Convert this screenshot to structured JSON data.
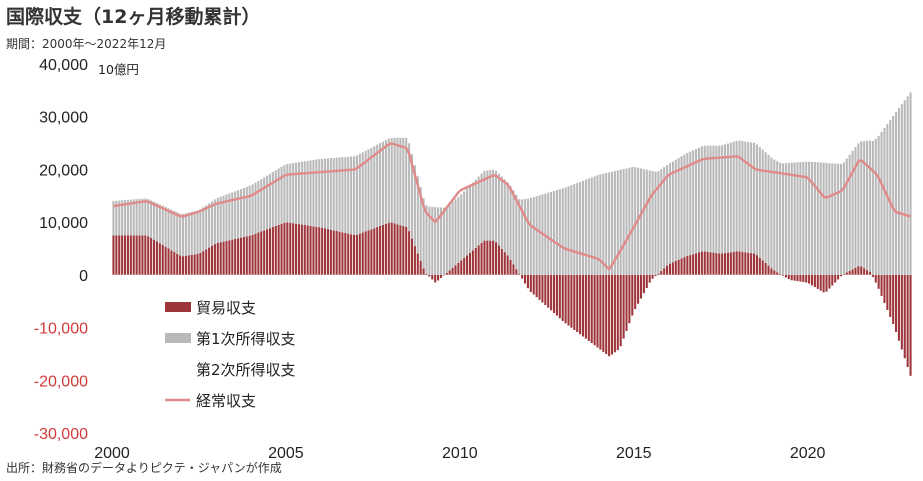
{
  "header": {
    "title": "国際収支（12ヶ月移動累計）",
    "period": "期間：2000年～2022年12月",
    "source": "出所：財務省のデータよりピクテ・ジャパンが作成"
  },
  "colors": {
    "trade": "#9e353b",
    "primary_income": "#b9b9b9",
    "secondary_income": "#ffffff",
    "current_account": "#e08a8a",
    "negative_tick": "#d23a3a"
  },
  "chart_data": {
    "type": "bar",
    "stacked": true,
    "unit_label": "10億円",
    "x_start": 2000,
    "x_end": 2023,
    "x_ticks": [
      "2000",
      "2005",
      "2010",
      "2015",
      "2020"
    ],
    "y_ticks": [
      "40,000",
      "30,000",
      "20,000",
      "10,000",
      "0",
      "-10,000",
      "-20,000",
      "-30,000"
    ],
    "ylim": [
      -30000,
      40000
    ],
    "grid": false,
    "legend_position": "lower-left",
    "series": [
      {
        "name": "貿易収支",
        "type": "bar",
        "keyframes": [
          [
            2000.0,
            7500
          ],
          [
            2001.0,
            7500
          ],
          [
            2001.5,
            5500
          ],
          [
            2002.0,
            3500
          ],
          [
            2002.5,
            4000
          ],
          [
            2003.0,
            6000
          ],
          [
            2004.0,
            7500
          ],
          [
            2005.0,
            10000
          ],
          [
            2006.0,
            9000
          ],
          [
            2007.0,
            7500
          ],
          [
            2008.0,
            10000
          ],
          [
            2008.5,
            9000
          ],
          [
            2009.0,
            500
          ],
          [
            2009.3,
            -1500
          ],
          [
            2010.0,
            2500
          ],
          [
            2010.7,
            6500
          ],
          [
            2011.0,
            6500
          ],
          [
            2011.4,
            3500
          ],
          [
            2012.0,
            -3000
          ],
          [
            2013.0,
            -9000
          ],
          [
            2014.0,
            -14000
          ],
          [
            2014.3,
            -15500
          ],
          [
            2014.6,
            -14000
          ],
          [
            2015.0,
            -7000
          ],
          [
            2015.5,
            -1000
          ],
          [
            2016.0,
            2000
          ],
          [
            2016.5,
            3500
          ],
          [
            2017.0,
            4500
          ],
          [
            2017.5,
            4000
          ],
          [
            2018.0,
            4500
          ],
          [
            2018.5,
            4000
          ],
          [
            2019.0,
            1000
          ],
          [
            2019.5,
            -1000
          ],
          [
            2020.0,
            -1500
          ],
          [
            2020.5,
            -3500
          ],
          [
            2021.0,
            0
          ],
          [
            2021.5,
            1800
          ],
          [
            2021.8,
            500
          ],
          [
            2022.0,
            -2000
          ],
          [
            2022.5,
            -10000
          ],
          [
            2023.0,
            -20000
          ]
        ]
      },
      {
        "name": "第1次所得収支",
        "type": "bar",
        "keyframes": [
          [
            2000.0,
            6500
          ],
          [
            2001.0,
            7000
          ],
          [
            2002.0,
            8000
          ],
          [
            2003.0,
            8500
          ],
          [
            2004.0,
            9500
          ],
          [
            2005.0,
            11000
          ],
          [
            2006.0,
            13000
          ],
          [
            2007.0,
            15000
          ],
          [
            2008.0,
            16000
          ],
          [
            2008.5,
            17000
          ],
          [
            2009.0,
            13000
          ],
          [
            2010.0,
            12500
          ],
          [
            2011.0,
            13500
          ],
          [
            2012.0,
            14500
          ],
          [
            2013.0,
            16500
          ],
          [
            2014.0,
            19000
          ],
          [
            2015.0,
            20500
          ],
          [
            2016.0,
            19000
          ],
          [
            2017.0,
            20000
          ],
          [
            2018.0,
            21000
          ],
          [
            2019.0,
            21000
          ],
          [
            2020.0,
            21500
          ],
          [
            2021.0,
            21000
          ],
          [
            2022.0,
            26000
          ],
          [
            2023.0,
            35000
          ]
        ]
      },
      {
        "name": "第2次所得収支",
        "type": "bar",
        "keyframes": [
          [
            2000.0,
            -1000
          ],
          [
            2023.0,
            -2500
          ]
        ]
      },
      {
        "name": "経常収支",
        "type": "line",
        "keyframes": [
          [
            2000.0,
            13000
          ],
          [
            2001.0,
            14000
          ],
          [
            2001.5,
            12500
          ],
          [
            2002.0,
            11000
          ],
          [
            2002.5,
            12000
          ],
          [
            2003.0,
            13500
          ],
          [
            2004.0,
            15000
          ],
          [
            2005.0,
            19000
          ],
          [
            2006.0,
            19500
          ],
          [
            2007.0,
            20000
          ],
          [
            2008.0,
            25000
          ],
          [
            2008.5,
            24000
          ],
          [
            2009.0,
            12000
          ],
          [
            2009.3,
            10000
          ],
          [
            2010.0,
            16000
          ],
          [
            2011.0,
            19000
          ],
          [
            2011.4,
            17000
          ],
          [
            2012.0,
            9500
          ],
          [
            2013.0,
            5000
          ],
          [
            2014.0,
            3000
          ],
          [
            2014.3,
            1000
          ],
          [
            2015.0,
            9000
          ],
          [
            2015.5,
            15000
          ],
          [
            2016.0,
            19000
          ],
          [
            2017.0,
            22000
          ],
          [
            2018.0,
            22500
          ],
          [
            2018.5,
            20000
          ],
          [
            2019.0,
            19500
          ],
          [
            2020.0,
            18500
          ],
          [
            2020.5,
            14500
          ],
          [
            2021.0,
            16000
          ],
          [
            2021.5,
            22000
          ],
          [
            2022.0,
            19000
          ],
          [
            2022.5,
            12000
          ],
          [
            2023.0,
            11000
          ]
        ]
      }
    ]
  }
}
